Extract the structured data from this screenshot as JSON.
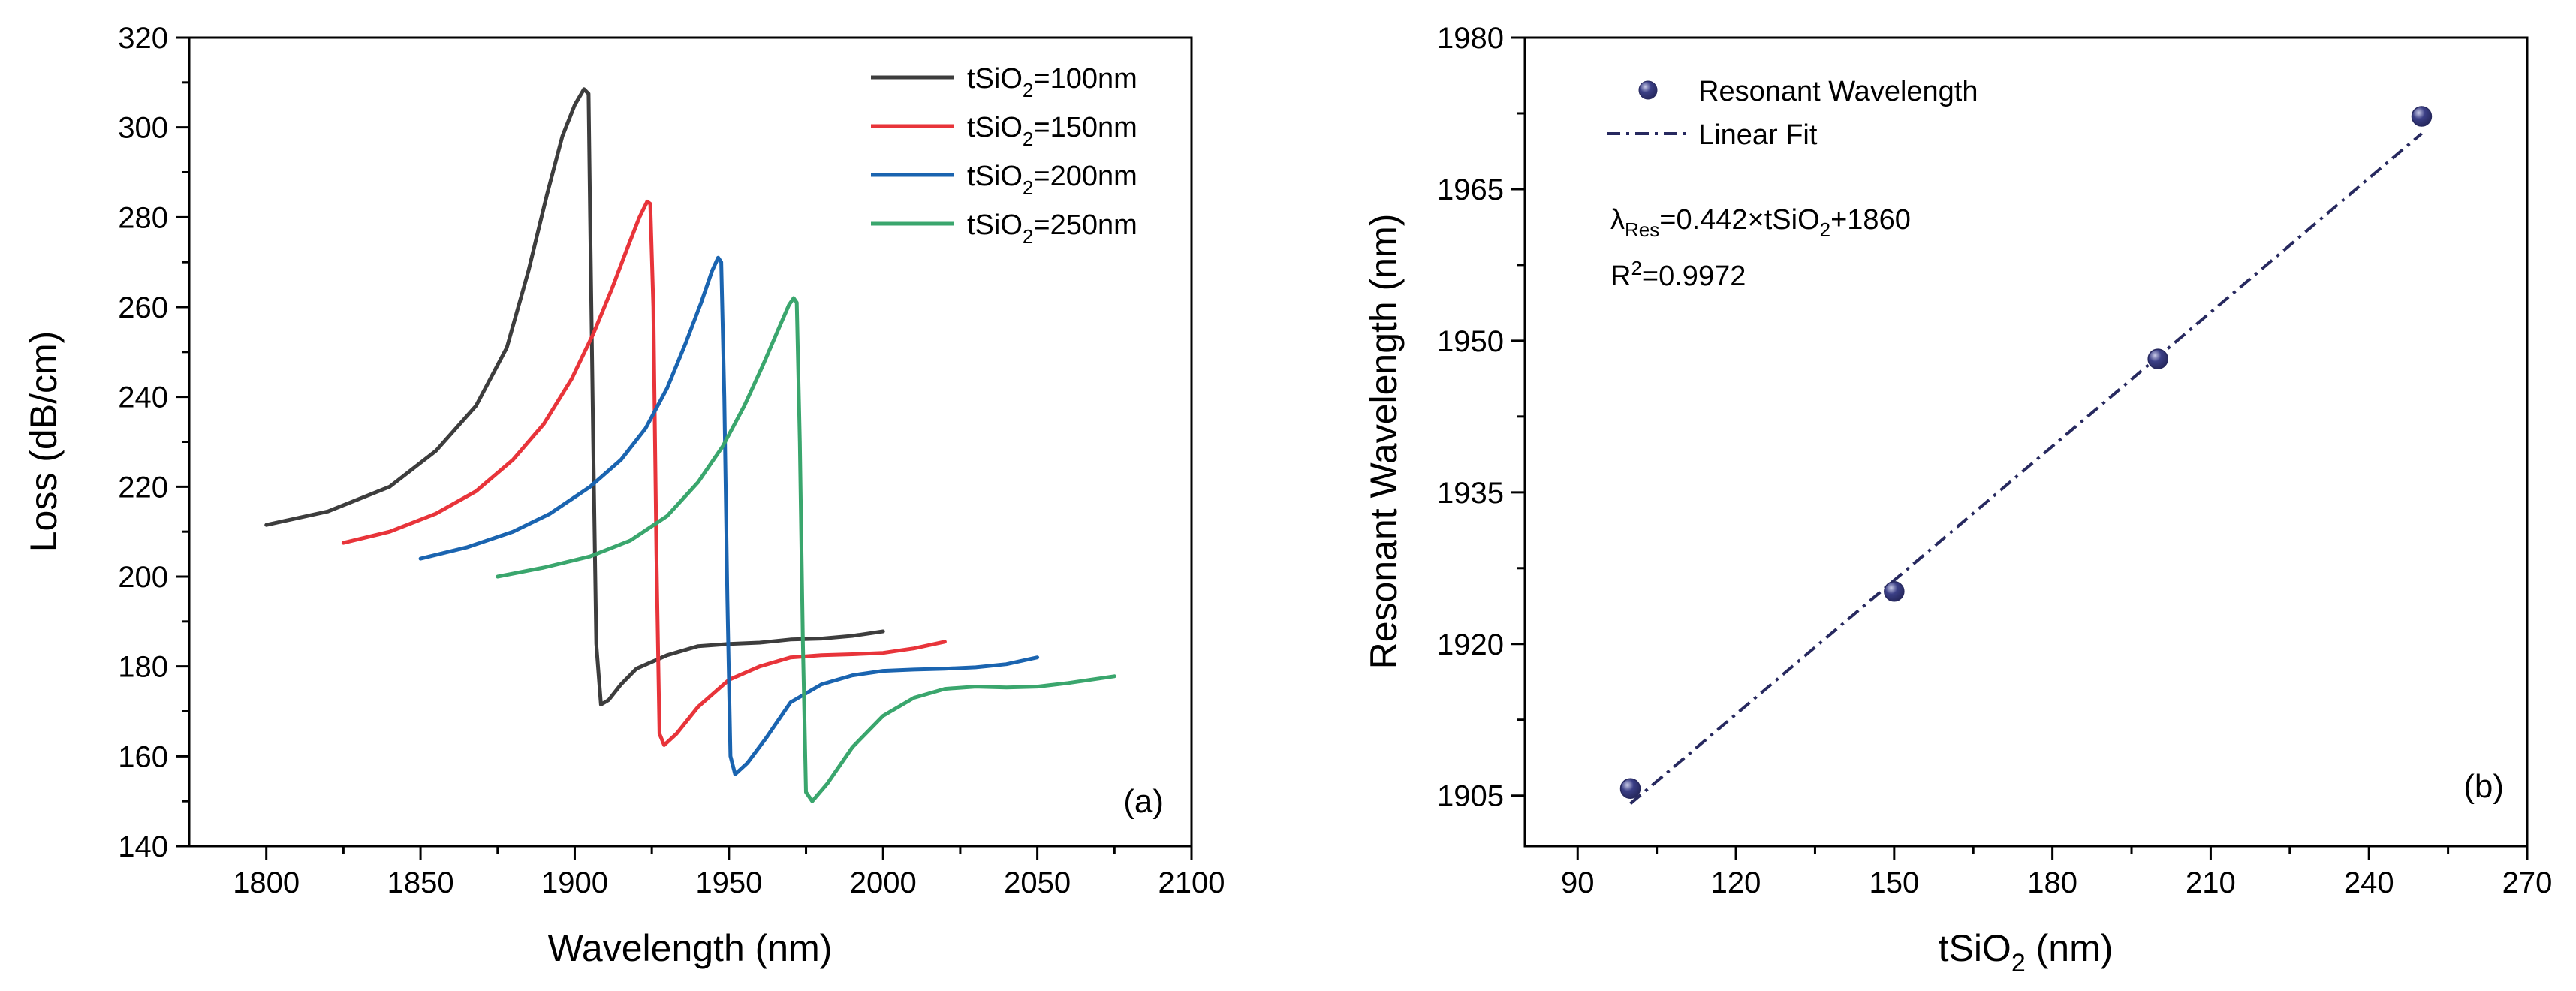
{
  "chart_data": [
    {
      "id": "a",
      "type": "line",
      "panel_label": "(a)",
      "xlabel": "Wavelength (nm)",
      "ylabel": "Loss (dB/cm)",
      "xlim": [
        1775,
        2100
      ],
      "ylim": [
        140,
        320
      ],
      "xticks": [
        1800,
        1850,
        1900,
        1950,
        2000,
        2050,
        2100
      ],
      "yticks": [
        140,
        160,
        180,
        200,
        220,
        240,
        260,
        280,
        300,
        320
      ],
      "legend_position": "top-right",
      "series": [
        {
          "name": "tSiO2=100nm",
          "legend_prefix": "tSiO",
          "legend_sub": "2",
          "legend_suffix": "=100nm",
          "color": "#3d3d3d",
          "x": [
            1800,
            1820,
            1840,
            1855,
            1868,
            1878,
            1885,
            1891,
            1896,
            1900,
            1903,
            1904.5,
            1905,
            1906,
            1907,
            1908.5,
            1911,
            1915,
            1920,
            1930,
            1940,
            1950,
            1960,
            1970,
            1980,
            1990,
            2000
          ],
          "y": [
            211.5,
            214.5,
            220,
            228,
            238,
            251,
            268,
            285,
            298,
            305,
            308.5,
            307.5,
            280,
            230,
            185,
            171.5,
            172.5,
            176,
            179.5,
            182.5,
            184.5,
            185,
            185.3,
            186,
            186.2,
            186.8,
            187.8
          ]
        },
        {
          "name": "tSiO2=150nm",
          "legend_prefix": "tSiO",
          "legend_sub": "2",
          "legend_suffix": "=150nm",
          "color": "#e8343a",
          "x": [
            1825,
            1840,
            1855,
            1868,
            1880,
            1890,
            1899,
            1906,
            1912,
            1917,
            1921,
            1923.5,
            1924.5,
            1925.5,
            1926.5,
            1927.5,
            1929,
            1933,
            1940,
            1950,
            1960,
            1970,
            1980,
            1990,
            2000,
            2010,
            2020
          ],
          "y": [
            207.5,
            210,
            214,
            219,
            226,
            234,
            244,
            254,
            264,
            273,
            280,
            283.5,
            283,
            260,
            205,
            165,
            162.5,
            165,
            171,
            177,
            180,
            182,
            182.5,
            182.7,
            183,
            184,
            185.5
          ]
        },
        {
          "name": "tSiO2=200nm",
          "legend_prefix": "tSiO",
          "legend_sub": "2",
          "legend_suffix": "=200nm",
          "color": "#1a64b0",
          "x": [
            1850,
            1865,
            1880,
            1892,
            1905,
            1915,
            1923,
            1930,
            1936,
            1941,
            1944.5,
            1946.5,
            1947.5,
            1948.5,
            1949.5,
            1950.5,
            1952,
            1956,
            1962,
            1970,
            1980,
            1990,
            2000,
            2010,
            2020,
            2030,
            2040,
            2050
          ],
          "y": [
            204,
            206.5,
            210,
            214,
            220,
            226,
            233,
            242,
            252,
            261,
            268,
            271,
            270,
            240,
            195,
            160,
            156,
            158.5,
            164,
            172,
            176,
            178,
            179,
            179.3,
            179.5,
            179.8,
            180.5,
            182
          ]
        },
        {
          "name": "tSiO2=250nm",
          "legend_prefix": "tSiO",
          "legend_sub": "2",
          "legend_suffix": "=250nm",
          "color": "#3aa66d",
          "x": [
            1875,
            1890,
            1905,
            1918,
            1930,
            1940,
            1948,
            1955,
            1961,
            1966,
            1969.5,
            1971,
            1972,
            1973,
            1974,
            1975,
            1977,
            1982,
            1990,
            2000,
            2010,
            2020,
            2030,
            2040,
            2050,
            2060,
            2075
          ],
          "y": [
            200,
            202,
            204.5,
            208,
            213.5,
            221,
            229,
            238,
            247,
            255,
            260.5,
            262,
            261,
            230,
            185,
            152,
            150,
            154,
            162,
            169,
            173,
            175,
            175.5,
            175.3,
            175.5,
            176.3,
            177.8
          ]
        }
      ]
    },
    {
      "id": "b",
      "type": "scatter",
      "panel_label": "(b)",
      "xlabel_prefix": "tSiO",
      "xlabel_sub": "2",
      "xlabel_suffix": " (nm)",
      "xlabel": "tSiO2 (nm)",
      "ylabel": "Resonant Wavelength (nm)",
      "xlim": [
        80,
        270
      ],
      "ylim": [
        1900,
        1980
      ],
      "xticks": [
        90,
        120,
        150,
        180,
        210,
        240,
        270
      ],
      "yticks": [
        1905,
        1920,
        1935,
        1950,
        1965,
        1980
      ],
      "legend_position": "top-left",
      "series": [
        {
          "name": "Resonant Wavelength",
          "color": "#27295f",
          "x": [
            100,
            150,
            200,
            250
          ],
          "y": [
            1905.7,
            1925.2,
            1948.2,
            1972.2
          ]
        }
      ],
      "fit": {
        "name": "Linear Fit",
        "color": "#27295f",
        "slope": 0.442,
        "intercept": 1860,
        "x_range": [
          100,
          250
        ]
      },
      "annotations": {
        "eq_lambda": "λ",
        "eq_sub": "Res",
        "eq_mid": "=0.442×tSiO",
        "eq_sub2": "2",
        "eq_end": "+1860",
        "r2_prefix": "R",
        "r2_sup": "2",
        "r2_value": "=0.9972"
      }
    }
  ]
}
